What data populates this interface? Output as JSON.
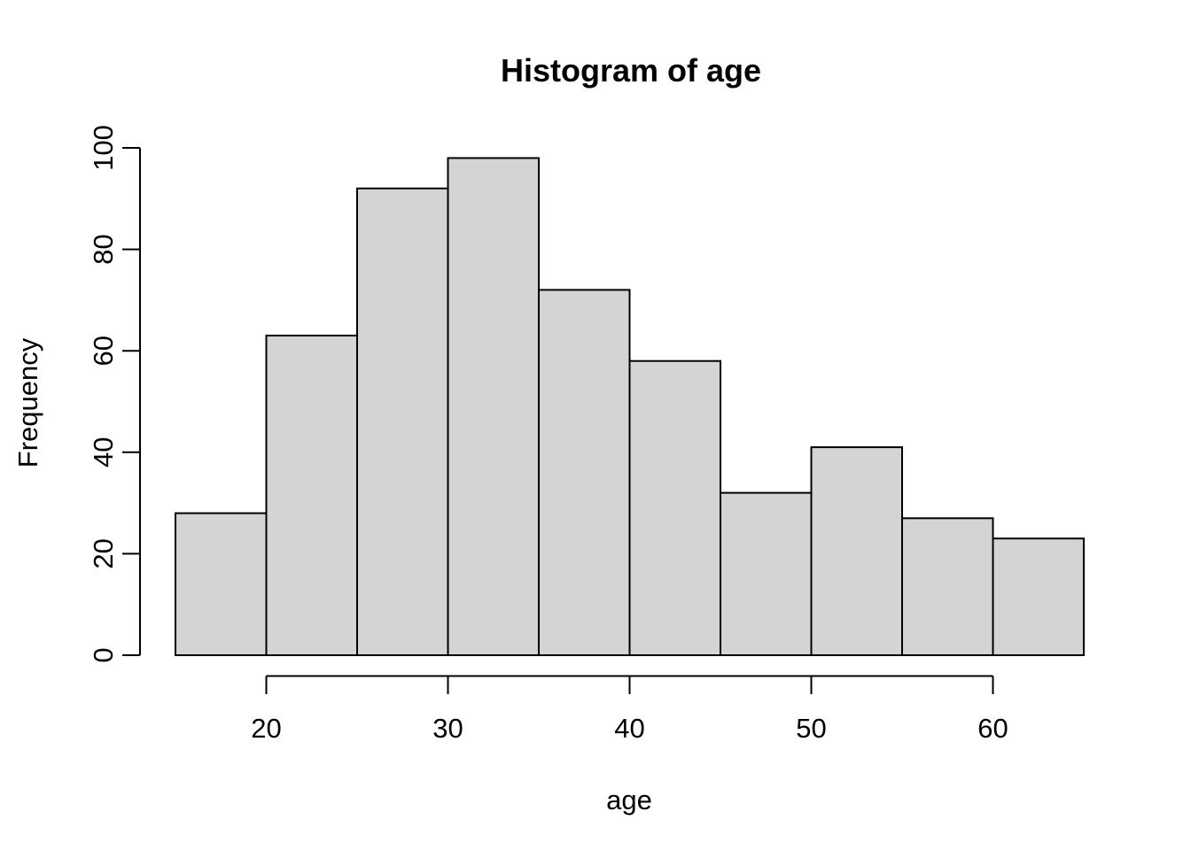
{
  "chart_data": {
    "type": "bar",
    "variant": "histogram",
    "title": "Histogram of age",
    "xlabel": "age",
    "ylabel": "Frequency",
    "bin_edges": [
      15,
      20,
      25,
      30,
      35,
      40,
      45,
      50,
      55,
      60,
      65
    ],
    "counts": [
      28,
      63,
      92,
      98,
      72,
      58,
      32,
      41,
      27,
      23
    ],
    "x_ticks": [
      20,
      30,
      40,
      50,
      60
    ],
    "y_ticks": [
      0,
      20,
      40,
      60,
      80,
      100
    ],
    "xlim": [
      15,
      65
    ],
    "ylim": [
      0,
      100
    ],
    "grid": false,
    "legend": "none",
    "bar_fill": "#d4d4d4",
    "bar_stroke": "#000000",
    "axis_color": "#000000",
    "text_color": "#000000",
    "background": "#ffffff"
  }
}
